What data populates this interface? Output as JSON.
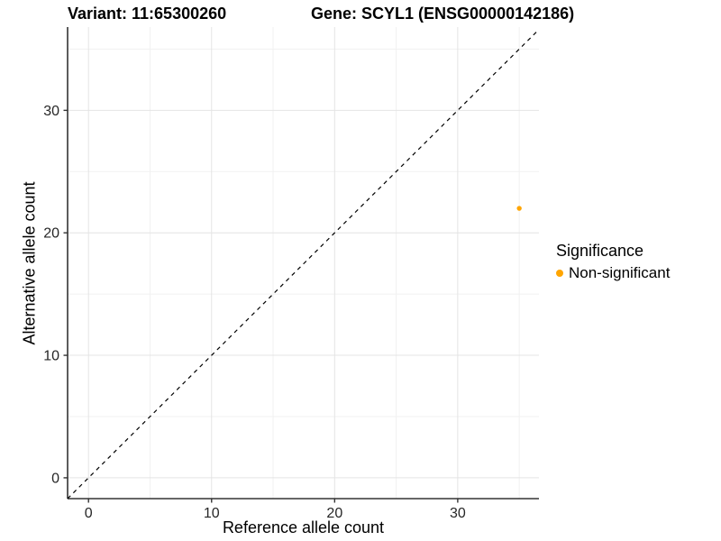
{
  "figure": {
    "title_left": "Variant: 11:65300260",
    "title_right": "Gene: SCYL1 (ENSG00000142186)"
  },
  "legend": {
    "title": "Significance",
    "items": [
      {
        "label": "Non-significant",
        "color": "#FFA500"
      }
    ]
  },
  "chart_data": {
    "type": "scatter",
    "title": "Variant: 11:65300260    Gene: SCYL1 (ENSG00000142186)",
    "xlabel": "Reference allele count",
    "ylabel": "Alternative allele count",
    "xlim": [
      -1.7,
      36.6
    ],
    "ylim": [
      -1.7,
      36.8
    ],
    "x_ticks": [
      0,
      10,
      20,
      30
    ],
    "y_ticks": [
      0,
      10,
      20,
      30
    ],
    "x_minor_gridlines": [
      5,
      15,
      25,
      35
    ],
    "y_minor_gridlines": [
      5,
      15,
      25,
      35
    ],
    "grid": true,
    "legend_position": "right-center",
    "series": [
      {
        "name": "Non-significant",
        "color": "#FFA500",
        "point_radius": 2.7,
        "points": [
          {
            "x": 35,
            "y": 22
          }
        ]
      }
    ],
    "reference_line": {
      "kind": "identity",
      "slope": 1,
      "intercept": 0,
      "style": "dashed",
      "color": "#000000"
    }
  },
  "colors": {
    "background": "#FFFFFF",
    "axis_line": "#333333",
    "tick_mark": "#333333",
    "tick_text": "#262626",
    "grid_major": "#E4E4E4",
    "grid_minor": "#F1F1F1",
    "point": "#FFA500"
  }
}
